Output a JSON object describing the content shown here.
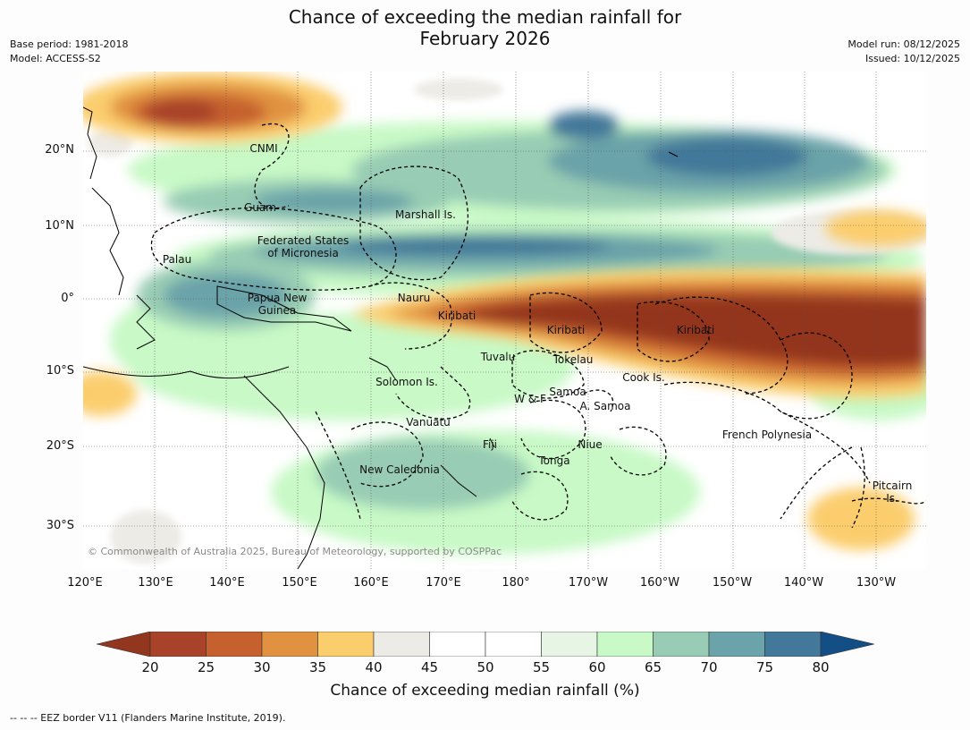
{
  "title_line1": "Chance of exceeding the median rainfall for",
  "title_line2": "February 2026",
  "meta_left": [
    "Base period: 1981-2018",
    "Model: ACCESS-S2"
  ],
  "meta_right": [
    "Model run: 08/12/2025",
    "Issued: 10/12/2025"
  ],
  "map": {
    "lon_ticks": [
      "120°E",
      "130°E",
      "140°E",
      "150°E",
      "160°E",
      "170°E",
      "180°",
      "170°W",
      "160°W",
      "150°W",
      "140°W",
      "130°W"
    ],
    "lat_ticks": [
      "20°N",
      "10°N",
      "0°",
      "10°S",
      "20°S",
      "30°S"
    ],
    "labels": [
      {
        "key": "cnmi",
        "text": "CNMI"
      },
      {
        "key": "guam",
        "text": "Guam"
      },
      {
        "key": "marshall",
        "text": "Marshall Is."
      },
      {
        "key": "fsm",
        "text": "Federated States\nof Micronesia"
      },
      {
        "key": "palau",
        "text": "Palau"
      },
      {
        "key": "png",
        "text": "Papua New\nGuinea"
      },
      {
        "key": "nauru",
        "text": "Nauru"
      },
      {
        "key": "kiribati1",
        "text": "Kiribati"
      },
      {
        "key": "kiribati2",
        "text": "Kiribati"
      },
      {
        "key": "kiribati3",
        "text": "Kiribati"
      },
      {
        "key": "tuvalu",
        "text": "Tuvalu"
      },
      {
        "key": "tokelau",
        "text": "Tokelau"
      },
      {
        "key": "cook",
        "text": "Cook Is."
      },
      {
        "key": "solomon",
        "text": "Solomon Is."
      },
      {
        "key": "samoa",
        "text": "Samoa"
      },
      {
        "key": "wf",
        "text": "W & F"
      },
      {
        "key": "asamoa",
        "text": "A. Samoa"
      },
      {
        "key": "vanuatu",
        "text": "Vanuatu"
      },
      {
        "key": "fiji",
        "text": "Fiji"
      },
      {
        "key": "niue",
        "text": "Niue"
      },
      {
        "key": "tonga",
        "text": "Tonga"
      },
      {
        "key": "newcal",
        "text": "New Caledonia"
      },
      {
        "key": "frpoly",
        "text": "French Polynesia"
      },
      {
        "key": "pitcairn",
        "text": "Pitcairn\nIs."
      }
    ],
    "credit": "© Commonwealth of Australia 2025, Bureau of Meteorology, supported by COSPPac"
  },
  "colorbar": {
    "ticks": [
      "20",
      "25",
      "30",
      "35",
      "40",
      "45",
      "50",
      "55",
      "60",
      "65",
      "70",
      "75",
      "80"
    ],
    "colors": [
      "#a8432a",
      "#c6612f",
      "#e09241",
      "#fbcd6d",
      "#edebe6",
      "#ffffff",
      "#ffffff",
      "#e7f5e4",
      "#c8f9c6",
      "#98ccb4",
      "#6aa3a9",
      "#427899"
    ],
    "under_color": "#93361e",
    "over_color": "#144e87",
    "label": "Chance of exceeding median rainfall (%)"
  },
  "footer": "--  --  -- EEZ border V11 (Flanders Marine Institute, 2019)."
}
